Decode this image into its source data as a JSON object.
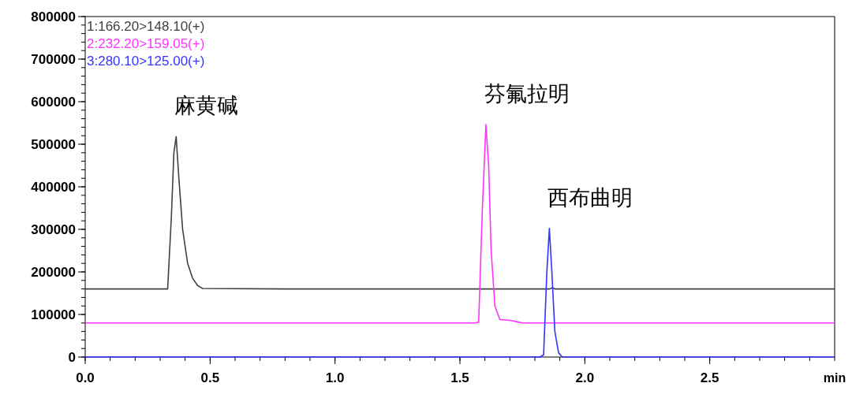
{
  "chart_data": {
    "type": "line",
    "xlabel": "min",
    "legend": "top left",
    "grid": false,
    "marker": "none",
    "line_style": "solid",
    "xlim": [
      0,
      3.0
    ],
    "xticks": [
      {
        "value": 0,
        "label": "0.0"
      },
      {
        "value": 0.5,
        "label": "0.5"
      },
      {
        "value": 1,
        "label": "1.0"
      },
      {
        "value": 1.5,
        "label": "1.5"
      },
      {
        "value": 2,
        "label": "2.0"
      },
      {
        "value": 2.5,
        "label": "2.5"
      }
    ],
    "ylim": [
      0,
      800000
    ],
    "yticks": [
      0,
      100000,
      200000,
      300000,
      400000,
      500000,
      600000,
      700000,
      800000
    ],
    "series": [
      {
        "name": "1:166.20>148.10(+)",
        "color": "#404040",
        "x": [
          0,
          0.28,
          0.33,
          0.345,
          0.355,
          0.364,
          0.375,
          0.39,
          0.41,
          0.43,
          0.45,
          0.47,
          0.8,
          1.2,
          1.6,
          1.86,
          1.87,
          1.88,
          2.5,
          3.0
        ],
        "values": [
          160000,
          160000,
          160000,
          330000,
          480000,
          518000,
          420000,
          300000,
          220000,
          185000,
          168000,
          161000,
          160000,
          160000,
          160000,
          160000,
          163000,
          160000,
          160000,
          160000
        ]
      },
      {
        "name": "2:232.20>159.05(+)",
        "color": "#ff33ff",
        "x": [
          0,
          1.56,
          1.575,
          1.59,
          1.604,
          1.615,
          1.625,
          1.64,
          1.66,
          1.7,
          1.72,
          1.75,
          3.0
        ],
        "values": [
          80000,
          80000,
          82000,
          350000,
          546000,
          450000,
          250000,
          120000,
          88000,
          86000,
          84000,
          80000,
          80000
        ]
      },
      {
        "name": "3:280.10>125.00(+)",
        "color": "#3333ff",
        "x": [
          0,
          1.82,
          1.835,
          1.848,
          1.858,
          1.868,
          1.88,
          1.895,
          1.91,
          3.0
        ],
        "values": [
          0,
          0,
          5000,
          200000,
          302000,
          200000,
          60000,
          10000,
          0,
          0
        ]
      }
    ],
    "annotations": [
      {
        "text": "麻黄碱",
        "x": 0.364,
        "y": 518000
      },
      {
        "text": "芬氟拉明",
        "x": 1.604,
        "y": 546000
      },
      {
        "text": "西布曲明",
        "x": 1.858,
        "y": 302000
      }
    ]
  }
}
